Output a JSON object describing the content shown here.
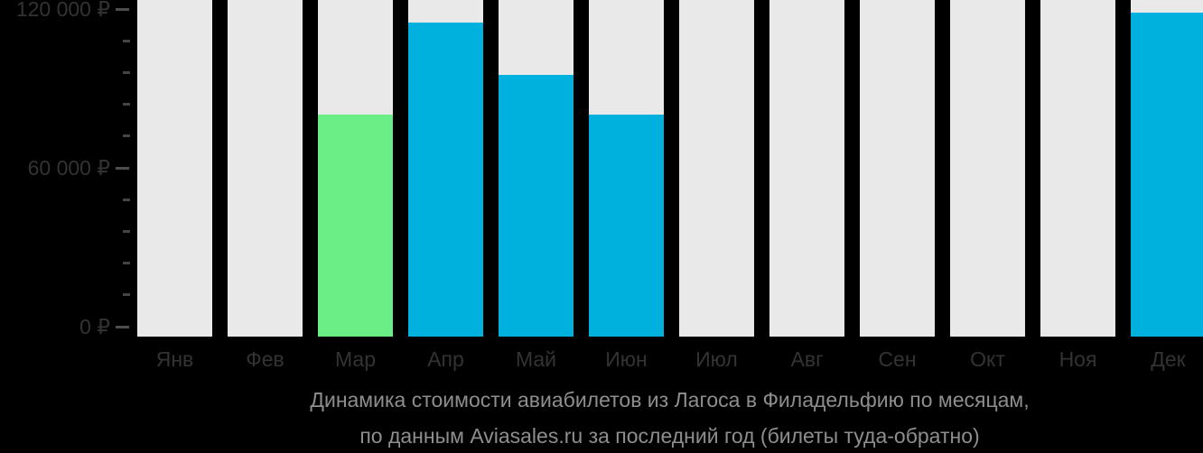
{
  "chart_data": {
    "type": "bar",
    "title_lines": [
      "Динамика стоимости авиабилетов из Лагоса в Филадельфию по месяцам,",
      "по данным Aviasales.ru за последний год (билеты туда-обратно)"
    ],
    "categories": [
      "Янв",
      "Фев",
      "Мар",
      "Апр",
      "Май",
      "Июн",
      "Июл",
      "Авг",
      "Сен",
      "Окт",
      "Ноя",
      "Дек"
    ],
    "values": [
      null,
      null,
      80000,
      115000,
      95000,
      80000,
      null,
      null,
      null,
      null,
      null,
      118500
    ],
    "bar_color_keys": [
      "empty",
      "empty",
      "min",
      "price",
      "price",
      "price",
      "empty",
      "empty",
      "empty",
      "empty",
      "empty",
      "price"
    ],
    "ylim": [
      0,
      120000
    ],
    "yticks": [
      {
        "value": 0,
        "label": "0 ₽"
      },
      {
        "value": 60000,
        "label": "60 000 ₽"
      },
      {
        "value": 120000,
        "label": "120 000 ₽"
      }
    ],
    "yticks_minor": [
      12000,
      24000,
      36000,
      48000,
      72000,
      84000,
      96000,
      108000
    ],
    "currency": "₽",
    "grid": "off",
    "legend": "none",
    "colors": {
      "price": "#00b1dd",
      "min": "#6aee85",
      "empty": "#e9e9e9",
      "background": "#000000",
      "axis_text": "#333335",
      "tick": "#4d4d4d",
      "title_text": "#8e8e8e"
    }
  }
}
